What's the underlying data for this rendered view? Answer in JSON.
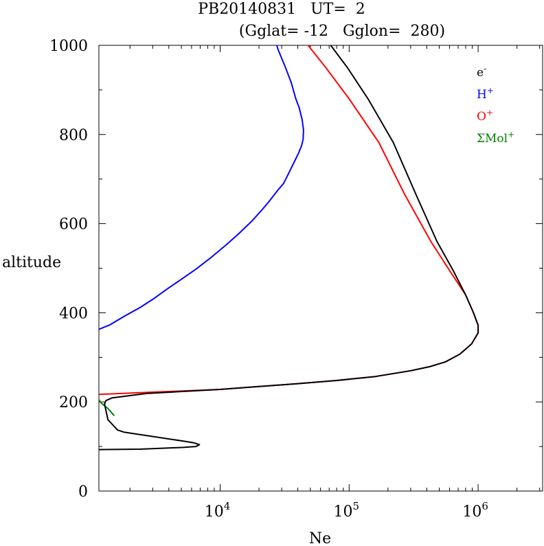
{
  "chart_data": {
    "type": "line",
    "title": "PB20140831   UT=  2",
    "subtitle": "(Gglat= -12   Gglon=  280)",
    "xlabel": "Ne",
    "ylabel": "altitude",
    "x_scale": "log",
    "xlim": [
      1148,
      3162278
    ],
    "ylim": [
      0,
      1000
    ],
    "x_ticks": [
      {
        "value": 10000,
        "base": "10",
        "exp": "4"
      },
      {
        "value": 100000,
        "base": "10",
        "exp": "5"
      },
      {
        "value": 1000000,
        "base": "10",
        "exp": "6"
      }
    ],
    "y_ticks": [
      0,
      200,
      400,
      600,
      800,
      1000
    ],
    "legend": {
      "position": "top-right",
      "entries": [
        {
          "base": "e",
          "sup": "-",
          "color": "#000000"
        },
        {
          "base": "H",
          "sup": "+",
          "color": "#0000ff"
        },
        {
          "base": "O",
          "sup": "+",
          "color": "#ff0000"
        },
        {
          "base": "ΣMol",
          "sup": "+",
          "color": "#008000"
        }
      ]
    },
    "series": [
      {
        "legend_index": 1,
        "color": "#0000ff",
        "points": [
          [
            1148,
            363
          ],
          [
            1400,
            373
          ],
          [
            1800,
            392
          ],
          [
            2400,
            412
          ],
          [
            3000,
            430
          ],
          [
            4000,
            456
          ],
          [
            5000,
            475
          ],
          [
            6500,
            498
          ],
          [
            8500,
            524
          ],
          [
            11000,
            551
          ],
          [
            14000,
            578
          ],
          [
            17500,
            605
          ],
          [
            21000,
            630
          ],
          [
            24000,
            650
          ],
          [
            28000,
            675
          ],
          [
            31000,
            690
          ],
          [
            34000,
            713
          ],
          [
            37500,
            738
          ],
          [
            40500,
            758
          ],
          [
            42800,
            775
          ],
          [
            44000,
            790
          ],
          [
            44300,
            810
          ],
          [
            43200,
            833
          ],
          [
            41000,
            860
          ],
          [
            38600,
            880
          ],
          [
            35500,
            917
          ],
          [
            31600,
            955
          ],
          [
            28000,
            992
          ],
          [
            27500,
            1000
          ]
        ]
      },
      {
        "legend_index": 2,
        "color": "#ff0000",
        "points": [
          [
            1148,
            217
          ],
          [
            10000,
            228
          ],
          [
            40000,
            241
          ],
          [
            80000,
            248
          ],
          [
            160000,
            257
          ],
          [
            300000,
            270
          ],
          [
            420000,
            279
          ],
          [
            560000,
            290
          ],
          [
            720000,
            307
          ],
          [
            890000,
            330
          ],
          [
            1000000,
            355
          ],
          [
            1000000,
            372
          ],
          [
            920000,
            400
          ],
          [
            800000,
            440
          ],
          [
            600000,
            495
          ],
          [
            430000,
            560
          ],
          [
            270000,
            665
          ],
          [
            170000,
            782
          ],
          [
            100000,
            880
          ],
          [
            66000,
            950
          ],
          [
            48000,
            1000
          ]
        ]
      },
      {
        "legend_index": 3,
        "color": "#008000",
        "points": [
          [
            1148,
            205
          ],
          [
            1200,
            197
          ],
          [
            1350,
            185
          ],
          [
            1500,
            170
          ]
        ]
      },
      {
        "legend_index": 0,
        "color": "#000000",
        "points": [
          [
            1148,
            93
          ],
          [
            2400,
            94
          ],
          [
            5200,
            98
          ],
          [
            6500,
            100
          ],
          [
            6900,
            104
          ],
          [
            6300,
            108
          ],
          [
            5500,
            111
          ],
          [
            1800,
            132
          ],
          [
            1600,
            137
          ],
          [
            1350,
            160
          ],
          [
            1270,
            195
          ],
          [
            1300,
            203
          ],
          [
            1450,
            209
          ],
          [
            2700,
            219
          ],
          [
            10000,
            228
          ],
          [
            40000,
            241
          ],
          [
            80000,
            248
          ],
          [
            160000,
            257
          ],
          [
            300000,
            270
          ],
          [
            420000,
            279
          ],
          [
            560000,
            290
          ],
          [
            720000,
            307
          ],
          [
            890000,
            330
          ],
          [
            1000000,
            355
          ],
          [
            1000000,
            372
          ],
          [
            920000,
            400
          ],
          [
            800000,
            440
          ],
          [
            640000,
            495
          ],
          [
            480000,
            560
          ],
          [
            330000,
            665
          ],
          [
            220000,
            782
          ],
          [
            140000,
            880
          ],
          [
            97000,
            950
          ],
          [
            72000,
            1000
          ]
        ]
      }
    ]
  }
}
